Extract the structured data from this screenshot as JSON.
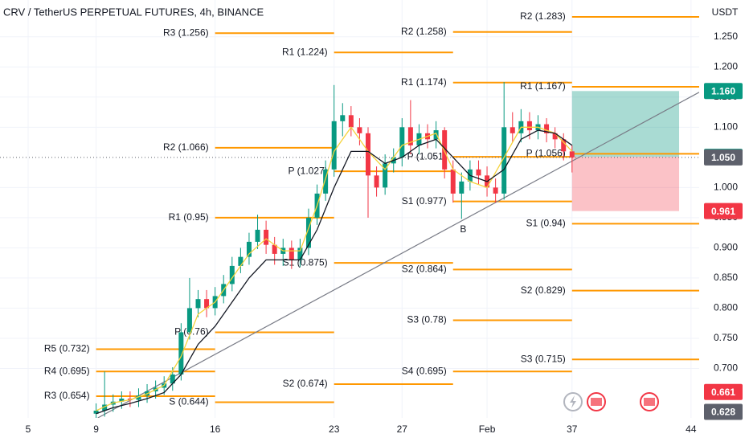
{
  "chart_data": {
    "type": "candlestick",
    "title": "CRV / TetherUS PERPETUAL FUTURES, 4h, BINANCE",
    "currency": "USDT",
    "up_color": "#089981",
    "down_color": "#f23645",
    "grid": true,
    "xlim": [
      3.345,
      44.48
    ],
    "ylim": [
      0.618,
      1.311
    ],
    "xticks": [
      5,
      9,
      16,
      23,
      27,
      {
        "value": 32,
        "label": "Feb"
      },
      37,
      44
    ],
    "yticks": [
      {
        "value": 0.7,
        "label": "0.700"
      },
      {
        "value": 0.75,
        "label": "0.750"
      },
      {
        "value": 0.8,
        "label": "0.800"
      },
      {
        "value": 0.85,
        "label": "0.850"
      },
      {
        "value": 0.9,
        "label": "0.900"
      },
      {
        "value": 0.95,
        "label": "0.950"
      },
      {
        "value": 1.0,
        "label": "1.000"
      },
      {
        "value": 1.1,
        "label": "1.100"
      },
      {
        "value": 1.15,
        "label": "1.150"
      },
      {
        "value": 1.2,
        "label": "1.200"
      },
      {
        "value": 1.25,
        "label": "1.250"
      }
    ],
    "x": [
      9,
      9.5,
      10,
      10.5,
      11,
      11.5,
      12,
      12.5,
      13,
      13.5,
      14,
      14.5,
      15,
      15.5,
      16,
      16.5,
      17,
      17.5,
      18,
      18.5,
      19,
      19.5,
      20,
      20.5,
      21,
      21.5,
      22,
      22.5,
      23,
      23.5,
      24,
      24.5,
      25,
      25.5,
      26,
      26.5,
      27,
      27.5,
      28,
      28.5,
      29,
      29.5,
      30,
      30.5,
      31,
      31.5,
      32,
      32.5,
      33,
      33.5,
      34,
      34.5,
      35,
      35.5,
      36,
      36.5,
      37
    ],
    "open": [
      0.625,
      0.63,
      0.64,
      0.645,
      0.65,
      0.648,
      0.655,
      0.662,
      0.668,
      0.675,
      0.69,
      0.76,
      0.8,
      0.815,
      0.8,
      0.82,
      0.84,
      0.87,
      0.885,
      0.91,
      0.93,
      0.905,
      0.89,
      0.9,
      0.88,
      0.9,
      0.95,
      0.99,
      1.03,
      1.11,
      1.12,
      1.1,
      1.09,
      1.02,
      1.0,
      1.04,
      1.05,
      1.1,
      1.07,
      1.09,
      1.08,
      1.095,
      1.03,
      0.99,
      1.01,
      1.03,
      1.02,
      1.0,
      0.99,
      1.1,
      1.09,
      1.11,
      1.095,
      1.105,
      1.09,
      1.08,
      1.06
    ],
    "high": [
      0.642,
      0.695,
      0.657,
      0.662,
      0.662,
      0.667,
      0.674,
      0.68,
      0.687,
      0.702,
      0.775,
      0.85,
      0.83,
      0.83,
      0.835,
      0.855,
      0.885,
      0.9,
      0.925,
      0.955,
      0.945,
      0.918,
      0.915,
      0.912,
      0.915,
      0.965,
      1.005,
      1.045,
      1.17,
      1.14,
      1.135,
      1.115,
      1.1,
      1.035,
      1.055,
      1.065,
      1.115,
      1.145,
      1.105,
      1.105,
      1.11,
      1.1,
      1.045,
      1.025,
      1.045,
      1.045,
      1.035,
      1.015,
      1.175,
      1.125,
      1.13,
      1.125,
      1.12,
      1.115,
      1.1,
      1.09,
      1.07
    ],
    "low": [
      0.618,
      0.62,
      0.628,
      0.633,
      0.636,
      0.636,
      0.643,
      0.65,
      0.656,
      0.663,
      0.68,
      0.748,
      0.785,
      0.785,
      0.788,
      0.808,
      0.828,
      0.858,
      0.872,
      0.898,
      0.89,
      0.872,
      0.87,
      0.865,
      0.868,
      0.888,
      0.938,
      0.978,
      1.018,
      1.085,
      1.085,
      1.07,
      0.95,
      0.985,
      0.988,
      1.025,
      1.035,
      1.055,
      1.055,
      1.065,
      1.065,
      1.015,
      0.975,
      0.948,
      0.995,
      1.005,
      0.985,
      0.975,
      0.98,
      1.075,
      1.075,
      1.08,
      1.08,
      1.075,
      1.065,
      1.045,
      1.025
    ],
    "close": [
      0.63,
      0.64,
      0.645,
      0.65,
      0.648,
      0.655,
      0.662,
      0.668,
      0.675,
      0.69,
      0.76,
      0.8,
      0.815,
      0.8,
      0.82,
      0.84,
      0.87,
      0.885,
      0.91,
      0.93,
      0.905,
      0.89,
      0.9,
      0.88,
      0.9,
      0.95,
      0.99,
      1.03,
      1.11,
      1.12,
      1.1,
      1.09,
      1.02,
      1.0,
      1.04,
      1.05,
      1.1,
      1.07,
      1.09,
      1.08,
      1.095,
      1.03,
      0.99,
      1.01,
      1.03,
      1.02,
      1.0,
      0.99,
      1.1,
      1.09,
      1.11,
      1.095,
      1.105,
      1.09,
      1.08,
      1.06,
      1.05
    ],
    "lines": [
      {
        "color": "#f5d33b",
        "x": [
          9,
          10,
          11,
          12,
          13,
          14,
          15,
          16,
          17,
          18,
          19,
          20,
          21,
          22,
          23,
          24,
          25,
          26,
          27,
          28,
          29,
          30,
          31,
          32,
          33,
          34,
          35,
          36,
          37
        ],
        "values": [
          0.63,
          0.643,
          0.648,
          0.658,
          0.672,
          0.72,
          0.79,
          0.81,
          0.85,
          0.89,
          0.915,
          0.895,
          0.895,
          0.97,
          1.06,
          1.1,
          1.06,
          1.03,
          1.07,
          1.08,
          1.09,
          1.03,
          1.01,
          1.0,
          1.05,
          1.1,
          1.1,
          1.09,
          1.06
        ]
      },
      {
        "color": "#131722",
        "x": [
          9,
          10,
          11,
          12,
          13,
          14,
          15,
          16,
          17,
          18,
          19,
          20,
          21,
          22,
          23,
          24,
          25,
          26,
          27,
          28,
          29,
          30,
          31,
          32,
          33,
          34,
          35,
          36,
          37
        ],
        "values": [
          0.625,
          0.635,
          0.642,
          0.65,
          0.66,
          0.69,
          0.74,
          0.77,
          0.81,
          0.85,
          0.88,
          0.88,
          0.88,
          0.93,
          1.0,
          1.06,
          1.06,
          1.04,
          1.05,
          1.07,
          1.08,
          1.05,
          1.02,
          1.01,
          1.03,
          1.08,
          1.095,
          1.09,
          1.07
        ]
      }
    ],
    "pivot_color": "#ff9800",
    "pivots": [
      {
        "label": "R3 (1.256)",
        "value": 1.256,
        "start": 16,
        "end": 23
      },
      {
        "label": "R1 (1.224)",
        "value": 1.224,
        "start": 23,
        "end": 30
      },
      {
        "label": "R2 (1.258)",
        "value": 1.258,
        "start": 30,
        "end": 37
      },
      {
        "label": "R2 (1.283)",
        "value": 1.283,
        "start": 37,
        "end": 44.48
      },
      {
        "label": "R1 (1.174)",
        "value": 1.174,
        "start": 30,
        "end": 37
      },
      {
        "label": "R1 (1.167)",
        "value": 1.167,
        "start": 37,
        "end": 44.48
      },
      {
        "label": "R2 (1.066)",
        "value": 1.066,
        "start": 16,
        "end": 23
      },
      {
        "label": "P (1.027)",
        "value": 1.027,
        "start": 23,
        "end": 30
      },
      {
        "label": "P (1.051)",
        "value": 1.051,
        "start": 30,
        "end": 37
      },
      {
        "label": "P (1.056)",
        "value": 1.056,
        "start": 37,
        "end": 44.48
      },
      {
        "label": "R1 (0.95)",
        "value": 0.95,
        "start": 16,
        "end": 23
      },
      {
        "label": "S1 (0.977)",
        "value": 0.977,
        "start": 30,
        "end": 37
      },
      {
        "label": "S1 (0.94)",
        "value": 0.94,
        "start": 37,
        "end": 44.48
      },
      {
        "label": "S1 (0.875)",
        "value": 0.875,
        "start": 23,
        "end": 30
      },
      {
        "label": "S2 (0.864)",
        "value": 0.864,
        "start": 30,
        "end": 37
      },
      {
        "label": "S2 (0.829)",
        "value": 0.829,
        "start": 37,
        "end": 44.48
      },
      {
        "label": "P (0.76)",
        "value": 0.76,
        "start": 16,
        "end": 23
      },
      {
        "label": "S3 (0.78)",
        "value": 0.78,
        "start": 30,
        "end": 37
      },
      {
        "label": "S3 (0.715)",
        "value": 0.715,
        "start": 37,
        "end": 44.48
      },
      {
        "label": "R5 (0.732)",
        "value": 0.732,
        "start": 9,
        "end": 16
      },
      {
        "label": "R4 (0.695)",
        "value": 0.695,
        "start": 9,
        "end": 16
      },
      {
        "label": "S4 (0.695)",
        "value": 0.695,
        "start": 30,
        "end": 37
      },
      {
        "label": "S2 (0.674)",
        "value": 0.674,
        "start": 23,
        "end": 30
      },
      {
        "label": "R3 (0.654)",
        "value": 0.654,
        "start": 9,
        "end": 16
      },
      {
        "label": "S (0.644)",
        "value": 0.644,
        "start": 16,
        "end": 23
      }
    ],
    "trendline": {
      "x": [
        9.1,
        44.48
      ],
      "y": [
        0.618,
        1.158
      ]
    },
    "annotation": {
      "text": "B",
      "x": 30.6,
      "y": 0.93
    },
    "position": {
      "entry": 1.051,
      "target": 1.16,
      "stop": 0.961,
      "start": 37,
      "end": 43.3
    },
    "price_tags": [
      {
        "value": 1.16,
        "label": "1.160",
        "color": "#089981"
      },
      {
        "value": 1.051,
        "label": "1.051",
        "color": "#089981"
      },
      {
        "value": 1.05,
        "label": "1.050",
        "color": "#5d606b"
      },
      {
        "value": 0.961,
        "label": "0.961",
        "color": "#f23645"
      },
      {
        "value": 0.661,
        "label": "0.661",
        "color": "#f23645"
      },
      {
        "value": 0.628,
        "label": "0.628",
        "color": "#5d606b"
      }
    ]
  }
}
